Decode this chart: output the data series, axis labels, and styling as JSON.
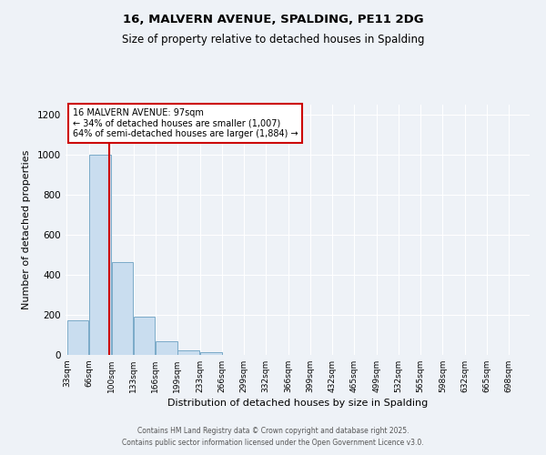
{
  "title": "16, MALVERN AVENUE, SPALDING, PE11 2DG",
  "subtitle": "Size of property relative to detached houses in Spalding",
  "xlabel": "Distribution of detached houses by size in Spalding",
  "ylabel": "Number of detached properties",
  "bins": [
    33,
    66,
    100,
    133,
    166,
    199,
    233,
    266,
    299,
    332,
    366,
    399,
    432,
    465,
    499,
    532,
    565,
    598,
    632,
    665,
    698
  ],
  "counts": [
    175,
    1000,
    465,
    190,
    68,
    22,
    12,
    0,
    0,
    0,
    0,
    0,
    0,
    0,
    0,
    0,
    0,
    0,
    0,
    0
  ],
  "bar_color": "#c9ddef",
  "bar_edge_color": "#7aaac8",
  "property_sqm": 97,
  "vline_color": "#cc0000",
  "annotation_text": "16 MALVERN AVENUE: 97sqm\n← 34% of detached houses are smaller (1,007)\n64% of semi-detached houses are larger (1,884) →",
  "annotation_box_color": "#ffffff",
  "annotation_box_edge": "#cc0000",
  "ylim": [
    0,
    1250
  ],
  "yticks": [
    0,
    200,
    400,
    600,
    800,
    1000,
    1200
  ],
  "background_color": "#eef2f7",
  "grid_color": "#ffffff",
  "footer1": "Contains HM Land Registry data © Crown copyright and database right 2025.",
  "footer2": "Contains public sector information licensed under the Open Government Licence v3.0.",
  "tick_labels": [
    "33sqm",
    "66sqm",
    "100sqm",
    "133sqm",
    "166sqm",
    "199sqm",
    "233sqm",
    "266sqm",
    "299sqm",
    "332sqm",
    "366sqm",
    "399sqm",
    "432sqm",
    "465sqm",
    "499sqm",
    "532sqm",
    "565sqm",
    "598sqm",
    "632sqm",
    "665sqm",
    "698sqm"
  ]
}
